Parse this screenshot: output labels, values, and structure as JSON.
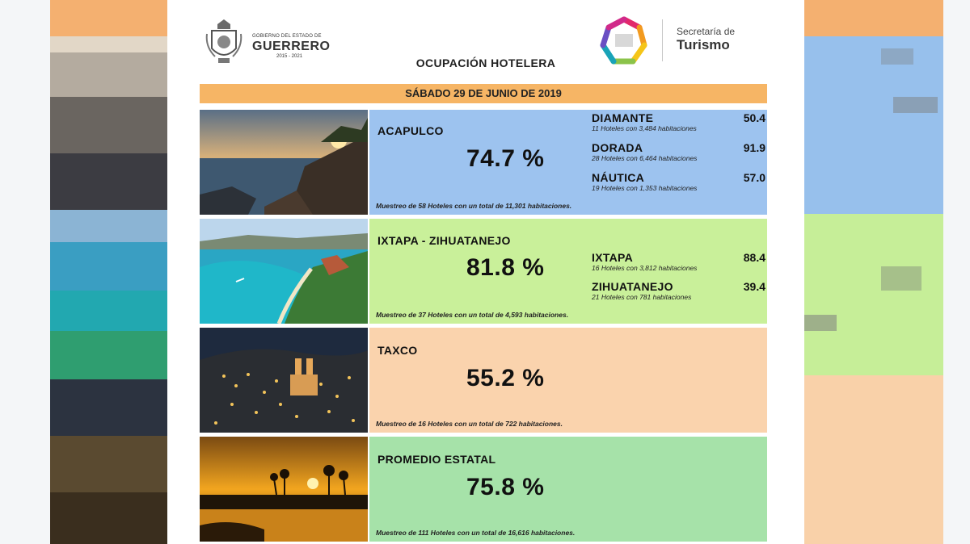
{
  "header": {
    "gov_line": "GOBIERNO DEL ESTADO DE",
    "gov_state": "GUERRERO",
    "gov_years": "2015 - 2021",
    "secretaria_line1": "Secretaría de",
    "secretaria_line2": "Turismo"
  },
  "title": "OCUPACIÓN HOTELERA",
  "date": "SÁBADO 29 DE JUNIO DE 2019",
  "destinations": [
    {
      "name": "ACAPULCO",
      "percent": "74.7 %",
      "sample": "Muestreo de 58 Hoteles con un total de 11,301 habitaciones.",
      "color": "#9dc3ef",
      "zones": [
        {
          "name": "DIAMANTE",
          "value": "50.4",
          "detail": "11 Hoteles con 3,484 habitaciones"
        },
        {
          "name": "DORADA",
          "value": "91.9",
          "detail": "28 Hoteles con 6,464 habitaciones"
        },
        {
          "name": "NÁUTICA",
          "value": "57.0",
          "detail": "19 Hoteles con 1,353 habitaciones"
        }
      ]
    },
    {
      "name": "IXTAPA - ZIHUATANEJO",
      "percent": "81.8 %",
      "sample": "Muestreo de 37 Hoteles con un total de 4,593 habitaciones.",
      "color": "#c9f09a",
      "zones": [
        {
          "name": "IXTAPA",
          "value": "88.4",
          "detail": "16 Hoteles con 3,812 habitaciones"
        },
        {
          "name": "ZIHUATANEJO",
          "value": "39.4",
          "detail": "21 Hoteles con 781 habitaciones"
        }
      ]
    },
    {
      "name": "TAXCO",
      "percent": "55.2 %",
      "sample": "Muestreo de 16 Hoteles con un total de 722 habitaciones.",
      "color": "#fad3ad",
      "zones": []
    },
    {
      "name": "PROMEDIO ESTATAL",
      "percent": "75.8 %",
      "sample": "Muestreo de 111 Hoteles con un total de 16,616 habitaciones.",
      "color": "#a6e2a9",
      "zones": []
    }
  ],
  "colors": {
    "date_bar": "#f6b565",
    "accent_orange": "#f6b565"
  },
  "icons": [
    "guerrero-coat-of-arms-icon",
    "turismo-star-logo-icon"
  ]
}
